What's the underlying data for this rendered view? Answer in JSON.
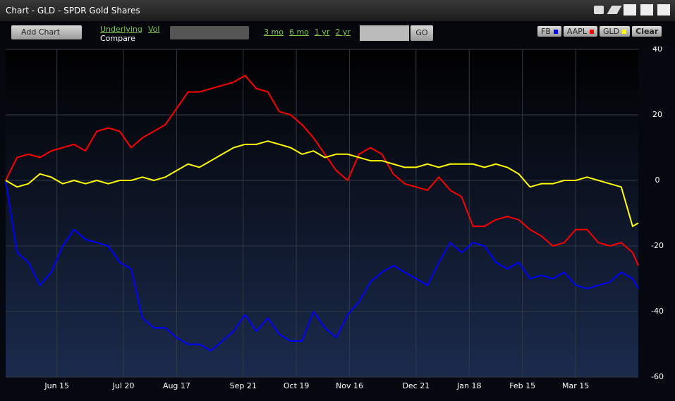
{
  "window": {
    "title": "Chart - GLD - SPDR Gold Shares"
  },
  "toolbar": {
    "add_chart": "Add Chart",
    "underlying": "Underlying",
    "vol": "Vol",
    "compare": "Compare",
    "ranges": [
      "3 mo",
      "6 mo",
      "1 yr",
      "2 yr"
    ],
    "go": "GO",
    "clear": "Clear"
  },
  "chart_data": {
    "type": "line",
    "x": [
      0,
      6,
      12,
      18,
      24,
      30,
      36,
      42,
      48,
      54,
      60,
      66,
      72,
      78,
      84,
      90,
      96,
      102,
      108,
      114,
      120,
      126,
      132,
      138,
      144,
      150,
      156,
      162,
      168,
      174,
      180,
      186,
      192,
      198,
      204,
      210,
      216,
      222,
      228,
      234,
      240,
      246,
      252,
      258,
      264,
      270,
      276,
      282,
      288,
      294,
      300,
      306,
      312,
      318,
      324,
      330,
      333
    ],
    "xlim": [
      0,
      333
    ],
    "xticks": [
      {
        "value": 27,
        "label": "Jun 15"
      },
      {
        "value": 62,
        "label": "Jul 20"
      },
      {
        "value": 90,
        "label": "Aug 17"
      },
      {
        "value": 125,
        "label": "Sep 21"
      },
      {
        "value": 153,
        "label": "Oct 19"
      },
      {
        "value": 181,
        "label": "Nov 16"
      },
      {
        "value": 216,
        "label": "Dec 21"
      },
      {
        "value": 244,
        "label": "Jan 18"
      },
      {
        "value": 272,
        "label": "Feb 15"
      },
      {
        "value": 300,
        "label": "Mar 15"
      }
    ],
    "ylim": [
      -60,
      40
    ],
    "yticks": [
      -60,
      -40,
      -20,
      0,
      20,
      40
    ],
    "grid": true,
    "series": [
      {
        "name": "FB",
        "color": "#0000ff",
        "values": [
          0,
          -22,
          -25,
          -32,
          -28,
          -20,
          -15,
          -18,
          -19,
          -20,
          -25,
          -27,
          -42,
          -45,
          -45,
          -48,
          -50,
          -50,
          -52,
          -49,
          -46,
          -41,
          -46,
          -42,
          -47,
          -49,
          -49,
          -40,
          -45,
          -48,
          -41,
          -37,
          -31,
          -28,
          -26,
          -28,
          -30,
          -32,
          -25,
          -19,
          -22,
          -19,
          -20,
          -25,
          -27,
          -25,
          -30,
          -29,
          -30,
          -28,
          -32,
          -33,
          -32,
          -31,
          -28,
          -30,
          -33
        ]
      },
      {
        "name": "AAPL",
        "color": "#ff0000",
        "values": [
          0,
          7,
          8,
          7,
          9,
          10,
          11,
          9,
          15,
          16,
          15,
          10,
          13,
          15,
          17,
          22,
          27,
          27,
          28,
          29,
          30,
          32,
          28,
          27,
          21,
          20,
          17,
          13,
          8,
          3,
          0,
          8,
          10,
          8,
          2,
          -1,
          -2,
          -3,
          1,
          -3,
          -5,
          -14,
          -14,
          -12,
          -11,
          -12,
          -15,
          -17,
          -20,
          -19,
          -15,
          -15,
          -19,
          -20,
          -19,
          -22,
          -26
        ]
      },
      {
        "name": "GLD",
        "color": "#ffff00",
        "values": [
          0,
          -2,
          -1,
          2,
          1,
          -1,
          0,
          -1,
          0,
          -1,
          0,
          0,
          1,
          0,
          1,
          3,
          5,
          4,
          6,
          8,
          10,
          11,
          11,
          12,
          11,
          10,
          8,
          9,
          7,
          8,
          8,
          7,
          6,
          6,
          5,
          4,
          4,
          5,
          4,
          5,
          5,
          5,
          4,
          5,
          4,
          2,
          -2,
          -1,
          -1,
          0,
          0,
          1,
          0,
          -1,
          -2,
          -14,
          -13
        ]
      }
    ]
  }
}
